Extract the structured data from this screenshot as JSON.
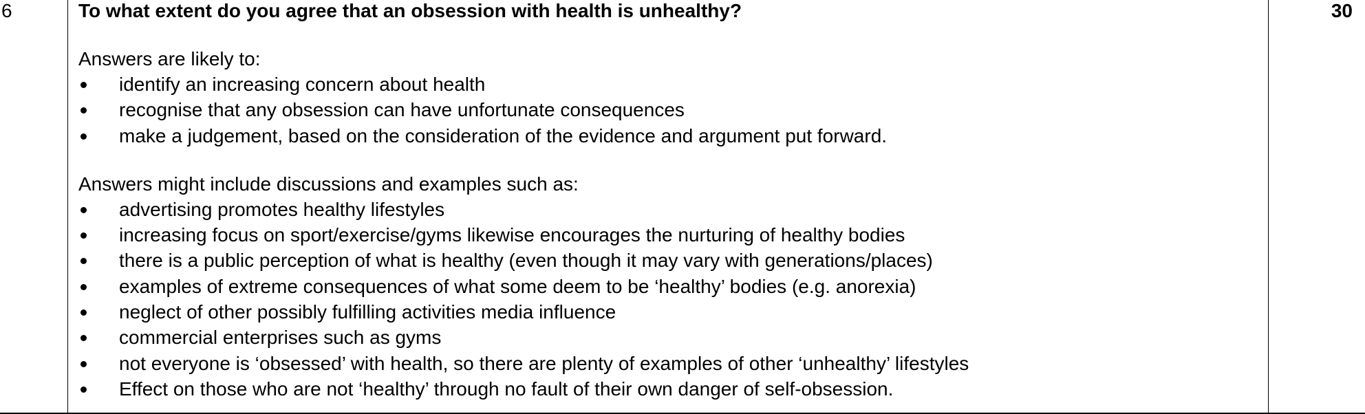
{
  "question_number": "6",
  "marks": "30",
  "question": "To what extent do you agree that an obsession with health is unhealthy?",
  "section1": {
    "intro": "Answers are likely to:",
    "bullets": [
      "identify an increasing concern about health",
      "recognise that any obsession can have unfortunate consequences",
      "make a judgement, based on the consideration of the evidence and argument put forward."
    ]
  },
  "section2": {
    "intro": "Answers might include discussions and examples such as:",
    "bullets": [
      "advertising promotes healthy lifestyles",
      "increasing focus on sport/exercise/gyms likewise encourages the nurturing of healthy bodies",
      "there is a public perception of what is healthy (even though it may vary with generations/places)",
      "examples of extreme consequences of what some deem to be ‘healthy’ bodies (e.g. anorexia)",
      "neglect of other possibly fulfilling activities media influence",
      "commercial enterprises such as gyms",
      "not everyone is ‘obsessed’ with health, so there are plenty of examples of other ‘unhealthy’ lifestyles",
      "Effect on those who are not ‘healthy’ through no fault of their own danger of self-obsession."
    ]
  }
}
